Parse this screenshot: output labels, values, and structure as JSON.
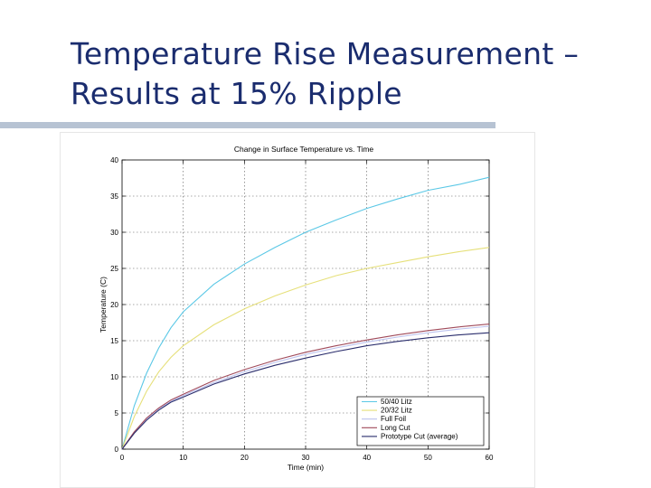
{
  "slide": {
    "title_line1": "Temperature Rise Measurement –",
    "title_line2": "Results at 15% Ripple"
  },
  "chart_data": {
    "type": "line",
    "title": "Change in Surface Temperature vs. Time",
    "xlabel": "Time (min)",
    "ylabel": "Temperature (C)",
    "xlim": [
      0,
      60
    ],
    "ylim": [
      0,
      40
    ],
    "xticks": [
      0,
      10,
      20,
      30,
      40,
      50,
      60
    ],
    "yticks": [
      0,
      5,
      10,
      15,
      20,
      25,
      30,
      35,
      40
    ],
    "grid": true,
    "legend_position": "bottom-right",
    "x": [
      0,
      2,
      4,
      6,
      8,
      10,
      15,
      20,
      25,
      30,
      35,
      40,
      45,
      50,
      55,
      60
    ],
    "series": [
      {
        "name": "50/40 Litz",
        "color": "#5bc8e6",
        "values": [
          0,
          6.0,
          10.5,
          14.0,
          16.8,
          19.0,
          22.8,
          25.6,
          27.9,
          30.0,
          31.7,
          33.3,
          34.6,
          35.8,
          36.6,
          37.6
        ]
      },
      {
        "name": "20/32 Litz",
        "color": "#e6e07a",
        "values": [
          0,
          4.5,
          8.0,
          10.7,
          12.7,
          14.3,
          17.2,
          19.4,
          21.2,
          22.7,
          24.0,
          25.0,
          25.8,
          26.6,
          27.3,
          27.9
        ]
      },
      {
        "name": "Full Foil",
        "color": "#bcc2ee",
        "values": [
          0,
          2.3,
          4.2,
          5.6,
          6.6,
          7.4,
          9.2,
          10.7,
          12.0,
          13.1,
          14.0,
          14.8,
          15.5,
          16.1,
          16.6,
          17.0
        ]
      },
      {
        "name": "Long Cut",
        "color": "#a04a5a",
        "values": [
          0,
          2.4,
          4.3,
          5.7,
          6.8,
          7.6,
          9.5,
          11.0,
          12.3,
          13.4,
          14.3,
          15.1,
          15.8,
          16.4,
          16.9,
          17.3
        ]
      },
      {
        "name": "Prototype Cut (average)",
        "color": "#2a2d6c",
        "values": [
          0,
          2.2,
          4.0,
          5.4,
          6.5,
          7.2,
          9.0,
          10.4,
          11.6,
          12.6,
          13.5,
          14.3,
          14.9,
          15.4,
          15.8,
          16.1
        ]
      }
    ]
  }
}
